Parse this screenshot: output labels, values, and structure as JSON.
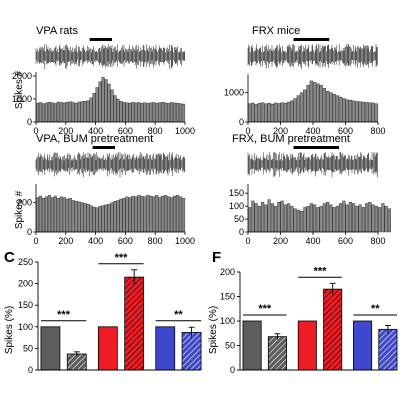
{
  "chart_data": [
    {
      "id": "A_top",
      "type": "bar",
      "title": "VPA rats",
      "ylabel": "Spikes #",
      "xlim": [
        0,
        1000
      ],
      "ylim": [
        0,
        2000
      ],
      "xticks": [
        0,
        200,
        400,
        600,
        800,
        1000
      ],
      "yticks": [
        0,
        1000,
        2000
      ],
      "stim_window": [
        360,
        510
      ],
      "x": [
        10,
        30,
        50,
        70,
        90,
        110,
        130,
        150,
        170,
        190,
        210,
        230,
        250,
        270,
        290,
        310,
        330,
        350,
        370,
        390,
        410,
        430,
        450,
        470,
        490,
        510,
        530,
        550,
        570,
        590,
        610,
        630,
        650,
        670,
        690,
        710,
        730,
        750,
        770,
        790,
        810,
        830,
        850,
        870,
        890,
        910,
        930,
        950,
        970,
        990
      ],
      "values": [
        820,
        850,
        800,
        830,
        860,
        840,
        810,
        870,
        850,
        830,
        860,
        880,
        850,
        820,
        870,
        890,
        900,
        930,
        1050,
        1250,
        1500,
        1750,
        1950,
        1850,
        1650,
        1400,
        1150,
        1000,
        900,
        860,
        840,
        820,
        860,
        830,
        850,
        820,
        840,
        810,
        830,
        850,
        820,
        840,
        860,
        830,
        810,
        850,
        830,
        820,
        800,
        780
      ]
    },
    {
      "id": "A_bottom",
      "type": "bar",
      "title": "VPA, BUM pretreatment",
      "ylabel": "Spikes #",
      "xlim": [
        0,
        1000
      ],
      "ylim": [
        0,
        300
      ],
      "xticks": [
        0,
        200,
        400,
        600,
        800,
        1000
      ],
      "yticks": [
        0,
        200
      ],
      "stim_window": [
        380,
        530
      ],
      "x": [
        10,
        30,
        50,
        70,
        90,
        110,
        130,
        150,
        170,
        190,
        210,
        230,
        250,
        270,
        290,
        310,
        330,
        350,
        370,
        390,
        410,
        430,
        450,
        470,
        490,
        510,
        530,
        550,
        570,
        590,
        610,
        630,
        650,
        670,
        690,
        710,
        730,
        750,
        770,
        790,
        810,
        830,
        850,
        870,
        890,
        910,
        930,
        950,
        970,
        990
      ],
      "values": [
        235,
        245,
        230,
        240,
        250,
        235,
        245,
        230,
        240,
        235,
        225,
        230,
        215,
        210,
        205,
        200,
        195,
        190,
        180,
        170,
        165,
        175,
        180,
        185,
        190,
        200,
        210,
        215,
        225,
        230,
        240,
        235,
        245,
        240,
        250,
        245,
        240,
        250,
        245,
        240,
        250,
        235,
        245,
        250,
        240,
        235,
        245,
        250,
        240,
        230
      ]
    },
    {
      "id": "D_top",
      "type": "bar",
      "title": "FRX mice",
      "xlim": [
        0,
        800
      ],
      "ylim": [
        0,
        1500
      ],
      "xticks": [
        0,
        200,
        400,
        600,
        800
      ],
      "yticks": [
        0,
        1000
      ],
      "stim_window": [
        280,
        500
      ],
      "x": [
        10,
        30,
        50,
        70,
        90,
        110,
        130,
        150,
        170,
        190,
        210,
        230,
        250,
        270,
        290,
        310,
        330,
        350,
        370,
        390,
        410,
        430,
        450,
        470,
        490,
        510,
        530,
        550,
        570,
        590,
        610,
        630,
        650,
        670,
        690,
        710,
        730,
        750,
        770,
        790
      ],
      "values": [
        620,
        650,
        600,
        640,
        660,
        620,
        640,
        610,
        650,
        630,
        660,
        640,
        680,
        720,
        800,
        900,
        1000,
        1100,
        1250,
        1400,
        1350,
        1300,
        1250,
        1150,
        1050,
        1000,
        950,
        900,
        850,
        800,
        760,
        740,
        720,
        700,
        690,
        680,
        670,
        660,
        650,
        620
      ]
    },
    {
      "id": "D_bottom",
      "type": "bar",
      "title": "FRX, BUM pretreatment",
      "xlim": [
        0,
        800
      ],
      "ylim": [
        0,
        170
      ],
      "xticks": [
        0,
        200,
        400,
        600,
        800
      ],
      "yticks": [
        0,
        50,
        100,
        150
      ],
      "stim_window": [
        280,
        560
      ],
      "x": [
        10,
        30,
        50,
        70,
        90,
        110,
        130,
        150,
        170,
        190,
        210,
        230,
        250,
        270,
        290,
        310,
        330,
        350,
        370,
        390,
        410,
        430,
        450,
        470,
        490,
        510,
        530,
        550,
        570,
        590,
        610,
        630,
        650,
        670,
        690,
        710,
        730,
        750,
        770,
        790,
        810,
        830,
        850,
        870
      ],
      "values": [
        95,
        120,
        110,
        100,
        115,
        105,
        125,
        110,
        100,
        115,
        120,
        105,
        110,
        100,
        90,
        85,
        80,
        95,
        100,
        110,
        105,
        95,
        100,
        110,
        115,
        105,
        95,
        100,
        110,
        120,
        105,
        115,
        110,
        100,
        105,
        95,
        110,
        115,
        105,
        100,
        95,
        110,
        100,
        90
      ]
    },
    {
      "id": "C",
      "type": "bar",
      "panel_label": "C",
      "ylabel": "Spikes (%)",
      "ylim": [
        0,
        250
      ],
      "yticks": [
        0,
        50,
        100,
        150,
        200,
        250
      ],
      "bars": [
        {
          "value": 100,
          "error": 0,
          "color": "#5d5d5d",
          "hatched": false
        },
        {
          "value": 37,
          "error": 5,
          "color": "#5d5d5d",
          "hatched": true
        },
        {
          "value": 100,
          "error": 0,
          "color": "#ee1c24",
          "hatched": false
        },
        {
          "value": 215,
          "error": 17,
          "color": "#ee1c24",
          "hatched": true
        },
        {
          "value": 100,
          "error": 0,
          "color": "#3f48cc",
          "hatched": false
        },
        {
          "value": 87,
          "error": 12,
          "color": "#3f48cc",
          "hatched": true
        }
      ],
      "significance": [
        {
          "pair": [
            0,
            1
          ],
          "label": "***"
        },
        {
          "pair": [
            2,
            3
          ],
          "label": "***"
        },
        {
          "pair": [
            4,
            5
          ],
          "label": "**"
        }
      ]
    },
    {
      "id": "F",
      "type": "bar",
      "panel_label": "F",
      "ylabel": "Spikes (%)",
      "ylim": [
        0,
        200
      ],
      "yticks": [
        0,
        50,
        100,
        150,
        200
      ],
      "bars": [
        {
          "value": 100,
          "error": 0,
          "color": "#5d5d5d",
          "hatched": false
        },
        {
          "value": 68,
          "error": 6,
          "color": "#5d5d5d",
          "hatched": true
        },
        {
          "value": 100,
          "error": 0,
          "color": "#ee1c24",
          "hatched": false
        },
        {
          "value": 165,
          "error": 12,
          "color": "#ee1c24",
          "hatched": true
        },
        {
          "value": 100,
          "error": 0,
          "color": "#3f48cc",
          "hatched": false
        },
        {
          "value": 83,
          "error": 8,
          "color": "#3f48cc",
          "hatched": true
        }
      ],
      "significance": [
        {
          "pair": [
            0,
            1
          ],
          "label": "***"
        },
        {
          "pair": [
            2,
            3
          ],
          "label": "***"
        },
        {
          "pair": [
            4,
            5
          ],
          "label": "**"
        }
      ]
    }
  ]
}
